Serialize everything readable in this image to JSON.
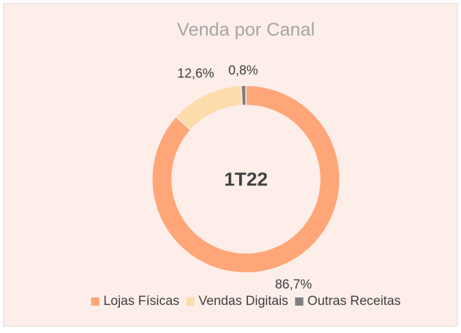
{
  "chart_data": {
    "type": "pie",
    "title": "Venda por Canal",
    "annotation": "1T22",
    "categories": [
      "Lojas Físicas",
      "Vendas Digitais",
      "Outras Receitas"
    ],
    "values": [
      86.7,
      12.6,
      0.8
    ],
    "value_labels": [
      "86,7%",
      "12,6%",
      "0,8%"
    ],
    "colors": [
      "#ffa679",
      "#fddcab",
      "#7f7f7f"
    ]
  }
}
